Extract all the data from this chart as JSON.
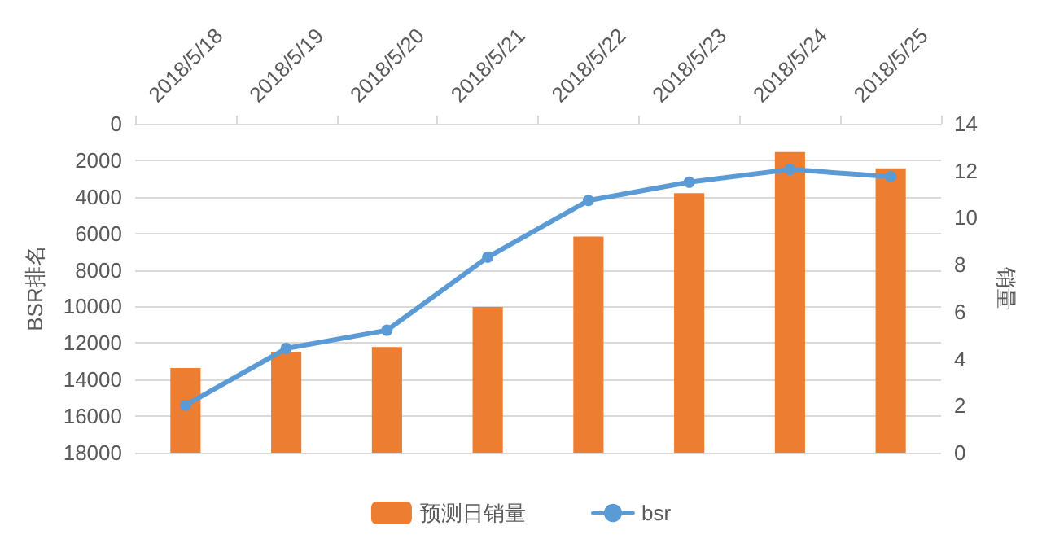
{
  "chart_data": {
    "type": "bar",
    "categories": [
      "2018/5/18",
      "2018/5/19",
      "2018/5/20",
      "2018/5/21",
      "2018/5/22",
      "2018/5/23",
      "2018/5/24",
      "2018/5/25"
    ],
    "series": [
      {
        "name": "预测日销量",
        "type": "bar",
        "axis": "y2",
        "color": "#ed7d31",
        "values": [
          3.6,
          4.3,
          4.5,
          6.2,
          9.2,
          11.05,
          12.8,
          12.1
        ]
      },
      {
        "name": "bsr",
        "type": "line",
        "color": "#5b9bd5",
        "values": [
          15400,
          12300,
          11300,
          7300,
          4200,
          3200,
          2500,
          2900
        ]
      }
    ],
    "ylabel": "BSR排名",
    "y2label": "销量",
    "ylim": [
      18000,
      0
    ],
    "yticks": [
      0,
      2000,
      4000,
      6000,
      8000,
      10000,
      12000,
      14000,
      16000,
      18000
    ],
    "y2lim": [
      0,
      14
    ],
    "y2ticks": [
      0,
      2,
      4,
      6,
      8,
      10,
      12,
      14
    ],
    "grid": "y",
    "legend": "bottom",
    "marker": "circle"
  }
}
